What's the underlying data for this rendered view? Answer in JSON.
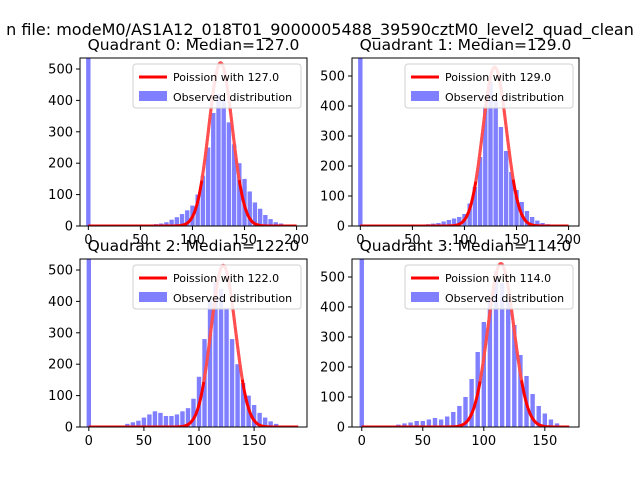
{
  "figure": {
    "suptitle": "n file: modeM0/AS1A12_018T01_9000005488_39590cztM0_level2_quad_clean"
  },
  "chart_data": [
    {
      "type": "bar",
      "title": "Quadrant 0: Median=127.0",
      "xlim": [
        -8,
        210
      ],
      "ylim": [
        0,
        535
      ],
      "xticks": [
        0,
        50,
        100,
        150,
        200
      ],
      "yticks": [
        0,
        100,
        200,
        300,
        400,
        500
      ],
      "legend": {
        "placement": "top-right",
        "line_label": "Poission with 127.0",
        "bar_label": "Observed distribution"
      },
      "bin_width": 4.2,
      "spike": {
        "x": 0,
        "height": 535
      },
      "histogram": [
        [
          55,
          4
        ],
        [
          60,
          4
        ],
        [
          65,
          6
        ],
        [
          70,
          8
        ],
        [
          75,
          12
        ],
        [
          80,
          20
        ],
        [
          85,
          28
        ],
        [
          90,
          38
        ],
        [
          95,
          50
        ],
        [
          100,
          65
        ],
        [
          105,
          100
        ],
        [
          110,
          160
        ],
        [
          115,
          250
        ],
        [
          120,
          360
        ],
        [
          125,
          420
        ],
        [
          130,
          400
        ],
        [
          135,
          330
        ],
        [
          140,
          260
        ],
        [
          145,
          200
        ],
        [
          150,
          150
        ],
        [
          155,
          110
        ],
        [
          160,
          75
        ],
        [
          165,
          55
        ],
        [
          170,
          35
        ],
        [
          175,
          22
        ],
        [
          180,
          12
        ],
        [
          185,
          8
        ],
        [
          190,
          4
        ]
      ],
      "poisson": {
        "mean": 127.0,
        "peak": 520,
        "x_range": [
          0,
          200
        ]
      },
      "colors": {
        "line": "#ff0000",
        "bar": "#7f7fff"
      }
    },
    {
      "type": "bar",
      "title": "Quadrant 1: Median=129.0",
      "xlim": [
        -8,
        210
      ],
      "ylim": [
        0,
        560
      ],
      "xticks": [
        0,
        50,
        100,
        150,
        200
      ],
      "yticks": [
        0,
        100,
        200,
        300,
        400,
        500
      ],
      "legend": {
        "placement": "top-right",
        "line_label": "Poission with 129.0",
        "bar_label": "Observed distribution"
      },
      "bin_width": 4.2,
      "spike": {
        "x": 0,
        "height": 560
      },
      "histogram": [
        [
          55,
          3
        ],
        [
          60,
          4
        ],
        [
          65,
          6
        ],
        [
          70,
          8
        ],
        [
          75,
          10
        ],
        [
          80,
          15
        ],
        [
          85,
          20
        ],
        [
          90,
          25
        ],
        [
          95,
          30
        ],
        [
          100,
          40
        ],
        [
          105,
          75
        ],
        [
          110,
          130
        ],
        [
          115,
          230
        ],
        [
          120,
          400
        ],
        [
          125,
          480
        ],
        [
          130,
          420
        ],
        [
          135,
          330
        ],
        [
          140,
          250
        ],
        [
          145,
          180
        ],
        [
          150,
          120
        ],
        [
          155,
          80
        ],
        [
          160,
          50
        ],
        [
          165,
          30
        ],
        [
          170,
          18
        ],
        [
          175,
          10
        ],
        [
          180,
          6
        ]
      ],
      "poisson": {
        "mean": 129.0,
        "peak": 530,
        "x_range": [
          0,
          200
        ]
      },
      "colors": {
        "line": "#ff0000",
        "bar": "#7f7fff"
      }
    },
    {
      "type": "bar",
      "title": "Quadrant 2: Median=122.0",
      "xlim": [
        -8,
        198
      ],
      "ylim": [
        0,
        535
      ],
      "xticks": [
        0,
        50,
        100,
        150
      ],
      "yticks": [
        0,
        100,
        200,
        300,
        400,
        500
      ],
      "legend": {
        "placement": "top-right",
        "line_label": "Poission with 122.0",
        "bar_label": "Observed distribution"
      },
      "bin_width": 4.0,
      "spike": {
        "x": 0,
        "height": 535
      },
      "histogram": [
        [
          35,
          10
        ],
        [
          40,
          15
        ],
        [
          45,
          20
        ],
        [
          50,
          30
        ],
        [
          55,
          40
        ],
        [
          60,
          50
        ],
        [
          65,
          45
        ],
        [
          70,
          35
        ],
        [
          75,
          35
        ],
        [
          80,
          40
        ],
        [
          85,
          50
        ],
        [
          90,
          60
        ],
        [
          95,
          90
        ],
        [
          100,
          160
        ],
        [
          105,
          280
        ],
        [
          110,
          400
        ],
        [
          115,
          460
        ],
        [
          120,
          440
        ],
        [
          125,
          380
        ],
        [
          130,
          280
        ],
        [
          135,
          200
        ],
        [
          140,
          140
        ],
        [
          145,
          100
        ],
        [
          150,
          70
        ],
        [
          155,
          45
        ],
        [
          160,
          30
        ],
        [
          165,
          18
        ],
        [
          170,
          10
        ]
      ],
      "poisson": {
        "mean": 122.0,
        "peak": 515,
        "x_range": [
          0,
          190
        ]
      },
      "colors": {
        "line": "#ff0000",
        "bar": "#7f7fff"
      }
    },
    {
      "type": "bar",
      "title": "Quadrant 3: Median=114.0",
      "xlim": [
        -8,
        178
      ],
      "ylim": [
        0,
        560
      ],
      "xticks": [
        0,
        50,
        100,
        150
      ],
      "yticks": [
        0,
        100,
        200,
        300,
        400,
        500
      ],
      "legend": {
        "placement": "top-right",
        "line_label": "Poission with 114.0",
        "bar_label": "Observed distribution"
      },
      "bin_width": 3.6,
      "spike": {
        "x": 0,
        "height": 560
      },
      "histogram": [
        [
          30,
          8
        ],
        [
          35,
          12
        ],
        [
          40,
          15
        ],
        [
          45,
          20
        ],
        [
          50,
          20
        ],
        [
          55,
          25
        ],
        [
          60,
          30
        ],
        [
          65,
          25
        ],
        [
          70,
          35
        ],
        [
          75,
          50
        ],
        [
          80,
          70
        ],
        [
          85,
          100
        ],
        [
          90,
          160
        ],
        [
          95,
          250
        ],
        [
          100,
          350
        ],
        [
          105,
          430
        ],
        [
          110,
          520
        ],
        [
          115,
          480
        ],
        [
          120,
          420
        ],
        [
          125,
          340
        ],
        [
          130,
          240
        ],
        [
          135,
          170
        ],
        [
          140,
          110
        ],
        [
          145,
          70
        ],
        [
          150,
          45
        ],
        [
          155,
          25
        ],
        [
          160,
          12
        ]
      ],
      "poisson": {
        "mean": 114.0,
        "peak": 545,
        "x_range": [
          0,
          170
        ]
      },
      "colors": {
        "line": "#ff0000",
        "bar": "#7f7fff"
      }
    }
  ]
}
